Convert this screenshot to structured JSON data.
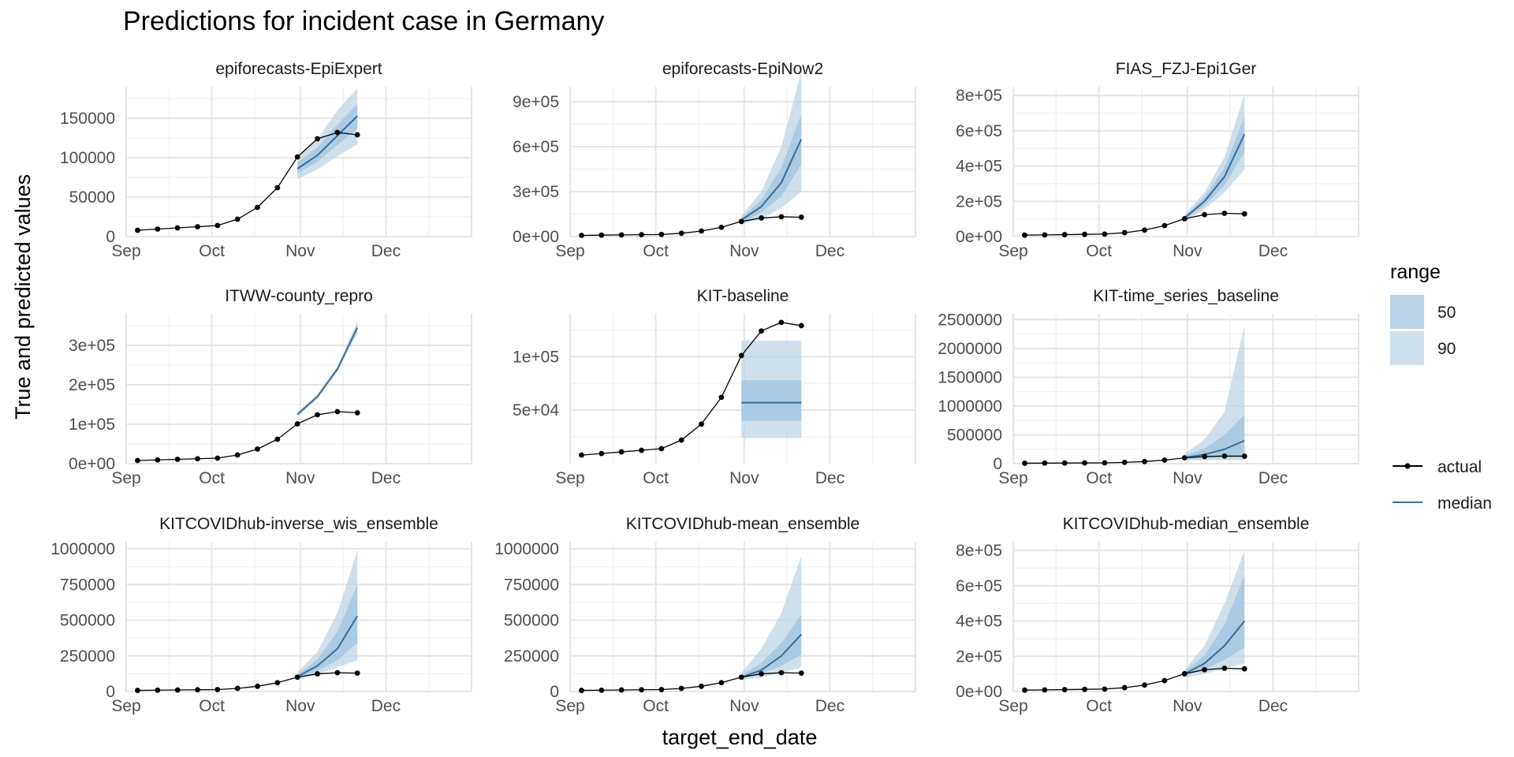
{
  "chart_data": {
    "type": "line",
    "title": "Predictions for incident case in Germany",
    "xlabel": "target_end_date",
    "ylabel": "True and predicted values",
    "grid": true,
    "x_ticks": [
      "Sep",
      "Oct",
      "Nov",
      "Dec"
    ],
    "x_tick_dates": [
      "2020-09-01",
      "2020-10-01",
      "2020-11-01",
      "2020-12-01"
    ],
    "xlim": [
      "2020-09-01",
      "2020-12-31"
    ],
    "legend_placement": "right",
    "legend": {
      "range_title": "range",
      "range_items": [
        {
          "label": "50",
          "color": "#9ec4e0",
          "opacity": 0.75
        },
        {
          "label": "90",
          "color": "#bad3e2",
          "opacity": 0.7
        }
      ],
      "line_items": [
        {
          "label": "actual",
          "color": "#000000",
          "points": true
        },
        {
          "label": "median",
          "color": "#3c6b96",
          "points": false
        }
      ]
    },
    "actual_dates": [
      "2020-09-05",
      "2020-09-12",
      "2020-09-19",
      "2020-09-26",
      "2020-10-03",
      "2020-10-10",
      "2020-10-17",
      "2020-10-24",
      "2020-10-31",
      "2020-11-07",
      "2020-11-14",
      "2020-11-21"
    ],
    "actual_values": [
      8000,
      9500,
      11000,
      12500,
      14000,
      22000,
      37000,
      62000,
      101000,
      124000,
      132000,
      129000
    ],
    "forecast_dates": [
      "2020-10-31",
      "2020-11-07",
      "2020-11-14",
      "2020-11-21"
    ],
    "panels": [
      {
        "name": "epiforecasts-EpiExpert",
        "ylim": [
          0,
          190000
        ],
        "y_ticks": [
          0,
          50000,
          100000,
          150000
        ],
        "y_tick_labels": [
          "0",
          "50000",
          "100000",
          "150000"
        ],
        "median": [
          86000,
          103000,
          128000,
          153000
        ],
        "q50": [
          [
            80000,
            94000
          ],
          [
            95000,
            113000
          ],
          [
            116000,
            142000
          ],
          [
            137000,
            168000
          ]
        ],
        "q90": [
          [
            73000,
            101000
          ],
          [
            85000,
            124000
          ],
          [
            102000,
            160000
          ],
          [
            117000,
            188000
          ]
        ]
      },
      {
        "name": "epiforecasts-EpiNow2",
        "ylim": [
          0,
          1000000
        ],
        "y_ticks": [
          0,
          300000,
          600000,
          900000
        ],
        "y_tick_labels": [
          "0e+00",
          "3e+05",
          "6e+05",
          "9e+05"
        ],
        "median": [
          110000,
          200000,
          360000,
          650000
        ],
        "q50": [
          [
            95000,
            125000
          ],
          [
            160000,
            245000
          ],
          [
            270000,
            460000
          ],
          [
            480000,
            820000
          ]
        ],
        "q90": [
          [
            80000,
            140000
          ],
          [
            120000,
            300000
          ],
          [
            190000,
            600000
          ],
          [
            300000,
            1100000
          ]
        ]
      },
      {
        "name": "FIAS_FZJ-Epi1Ger",
        "ylim": [
          0,
          850000
        ],
        "y_ticks": [
          0,
          200000,
          400000,
          600000,
          800000
        ],
        "y_tick_labels": [
          "0e+00",
          "2e+05",
          "4e+05",
          "6e+05",
          "8e+05"
        ],
        "median": [
          105000,
          200000,
          340000,
          580000
        ],
        "q50": [
          [
            95000,
            115000
          ],
          [
            175000,
            225000
          ],
          [
            290000,
            390000
          ],
          [
            480000,
            680000
          ]
        ],
        "q90": [
          [
            85000,
            125000
          ],
          [
            155000,
            250000
          ],
          [
            250000,
            450000
          ],
          [
            380000,
            810000
          ]
        ]
      },
      {
        "name": "ITWW-county_repro",
        "ylim": [
          0,
          380000
        ],
        "y_ticks": [
          0,
          100000,
          200000,
          300000
        ],
        "y_tick_labels": [
          "0e+00",
          "1e+05",
          "2e+05",
          "3e+05"
        ],
        "median": [
          125000,
          170000,
          240000,
          345000
        ],
        "q50": [
          [
            123000,
            127000
          ],
          [
            167000,
            173000
          ],
          [
            237000,
            243000
          ],
          [
            338000,
            352000
          ]
        ],
        "q90": [
          [
            120000,
            130000
          ],
          [
            164000,
            176000
          ],
          [
            233000,
            247000
          ],
          [
            330000,
            360000
          ]
        ]
      },
      {
        "name": "KIT-baseline",
        "ylim": [
          0,
          140000
        ],
        "y_ticks": [
          50000,
          100000
        ],
        "y_tick_labels": [
          "5e+04",
          "1e+05"
        ],
        "median": [
          57000,
          57000,
          57000,
          57000
        ],
        "q50": [
          [
            40000,
            78000
          ],
          [
            40000,
            78000
          ],
          [
            40000,
            78000
          ],
          [
            40000,
            78000
          ]
        ],
        "q90": [
          [
            24000,
            115000
          ],
          [
            24000,
            115000
          ],
          [
            24000,
            115000
          ],
          [
            24000,
            115000
          ]
        ]
      },
      {
        "name": "KIT-time_series_baseline",
        "ylim": [
          0,
          2600000
        ],
        "y_ticks": [
          0,
          500000,
          1000000,
          1500000,
          2000000,
          2500000
        ],
        "y_tick_labels": [
          "0",
          "500000",
          "1000000",
          "1500000",
          "2000000",
          "2500000"
        ],
        "median": [
          105000,
          160000,
          250000,
          400000
        ],
        "q50": [
          [
            80000,
            135000
          ],
          [
            90000,
            260000
          ],
          [
            110000,
            500000
          ],
          [
            130000,
            850000
          ]
        ],
        "q90": [
          [
            60000,
            170000
          ],
          [
            60000,
            420000
          ],
          [
            60000,
            900000
          ],
          [
            60000,
            2400000
          ]
        ]
      },
      {
        "name": "KITCOVIDhub-inverse_wis_ensemble",
        "ylim": [
          0,
          1050000
        ],
        "y_ticks": [
          0,
          250000,
          500000,
          750000,
          1000000
        ],
        "y_tick_labels": [
          "0",
          "250000",
          "500000",
          "750000",
          "1000000"
        ],
        "median": [
          105000,
          180000,
          300000,
          530000
        ],
        "q50": [
          [
            90000,
            120000
          ],
          [
            145000,
            225000
          ],
          [
            220000,
            420000
          ],
          [
            340000,
            750000
          ]
        ],
        "q90": [
          [
            80000,
            135000
          ],
          [
            120000,
            280000
          ],
          [
            170000,
            550000
          ],
          [
            220000,
            990000
          ]
        ]
      },
      {
        "name": "KITCOVIDhub-mean_ensemble",
        "ylim": [
          0,
          1050000
        ],
        "y_ticks": [
          0,
          250000,
          500000,
          750000,
          1000000
        ],
        "y_tick_labels": [
          "0",
          "250000",
          "500000",
          "750000",
          "1000000"
        ],
        "median": [
          100000,
          150000,
          250000,
          400000
        ],
        "q50": [
          [
            90000,
            115000
          ],
          [
            125000,
            200000
          ],
          [
            180000,
            340000
          ],
          [
            260000,
            540000
          ]
        ],
        "q90": [
          [
            80000,
            130000
          ],
          [
            100000,
            300000
          ],
          [
            130000,
            550000
          ],
          [
            170000,
            950000
          ]
        ]
      },
      {
        "name": "KITCOVIDhub-median_ensemble",
        "ylim": [
          0,
          850000
        ],
        "y_ticks": [
          0,
          200000,
          400000,
          600000,
          800000
        ],
        "y_tick_labels": [
          "0e+00",
          "2e+05",
          "4e+05",
          "6e+05",
          "8e+05"
        ],
        "median": [
          100000,
          160000,
          260000,
          400000
        ],
        "q50": [
          [
            88000,
            112000
          ],
          [
            125000,
            205000
          ],
          [
            180000,
            380000
          ],
          [
            250000,
            660000
          ]
        ],
        "q90": [
          [
            78000,
            125000
          ],
          [
            100000,
            260000
          ],
          [
            130000,
            500000
          ],
          [
            160000,
            800000
          ]
        ]
      }
    ]
  }
}
